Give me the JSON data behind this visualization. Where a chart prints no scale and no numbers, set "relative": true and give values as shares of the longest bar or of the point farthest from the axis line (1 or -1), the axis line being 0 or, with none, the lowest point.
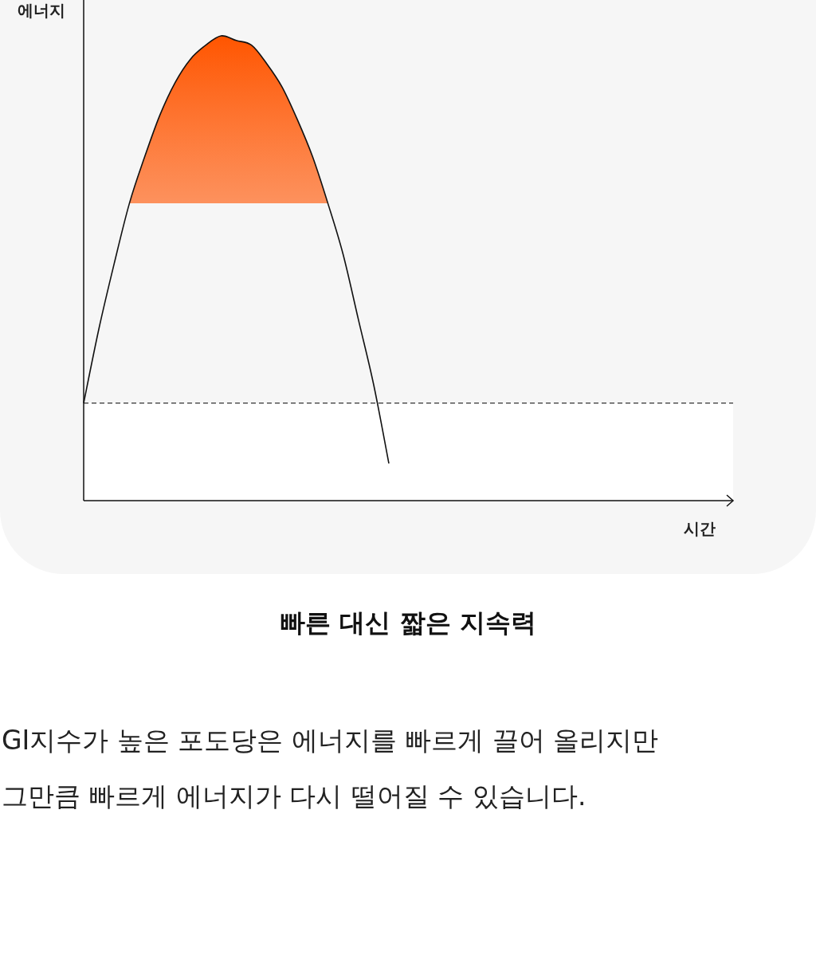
{
  "chart_data": {
    "type": "line",
    "relative": true,
    "title": "빠른 대신 짧은 지속력",
    "xlabel": "시간",
    "ylabel": "에너지",
    "categories": [
      null,
      null,
      null,
      null,
      null,
      null,
      null,
      null,
      null,
      null,
      null,
      null,
      null,
      null,
      null,
      null,
      null,
      null,
      null,
      null,
      null,
      null,
      null,
      null,
      null,
      null,
      null,
      null,
      null,
      null,
      null,
      null,
      null,
      null,
      null,
      null,
      null,
      null,
      null,
      null,
      null,
      null,
      null
    ],
    "series": [
      {
        "color": "#111111",
        "values": [
          0.21,
          0.37,
          0.51,
          0.64,
          0.74,
          0.83,
          0.9,
          0.95,
          0.98,
          1,
          0.99,
          0.98,
          0.94,
          0.89,
          0.82,
          0.74,
          0.64,
          0.53,
          0.39,
          0.25,
          0.08,
          null,
          null,
          null,
          null,
          null,
          null,
          null,
          null,
          null,
          null,
          null,
          null,
          null,
          null,
          null,
          null,
          null,
          null,
          null,
          null,
          null,
          null
        ]
      }
    ],
    "ref_lines": [
      {
        "axis": "y",
        "value": 0.21,
        "color": "#333333",
        "line_style": "dashed"
      }
    ],
    "bands": [
      {
        "axis": "y",
        "from": 0,
        "to": 0.21,
        "color": "#ffffff"
      }
    ],
    "annotations": [
      "GI지수가 높은 포도당은 에너지를 빠르게 끌어 올리지만",
      "그만큼 빠르게 에너지가 다시 떨어질 수 있습니다."
    ]
  }
}
